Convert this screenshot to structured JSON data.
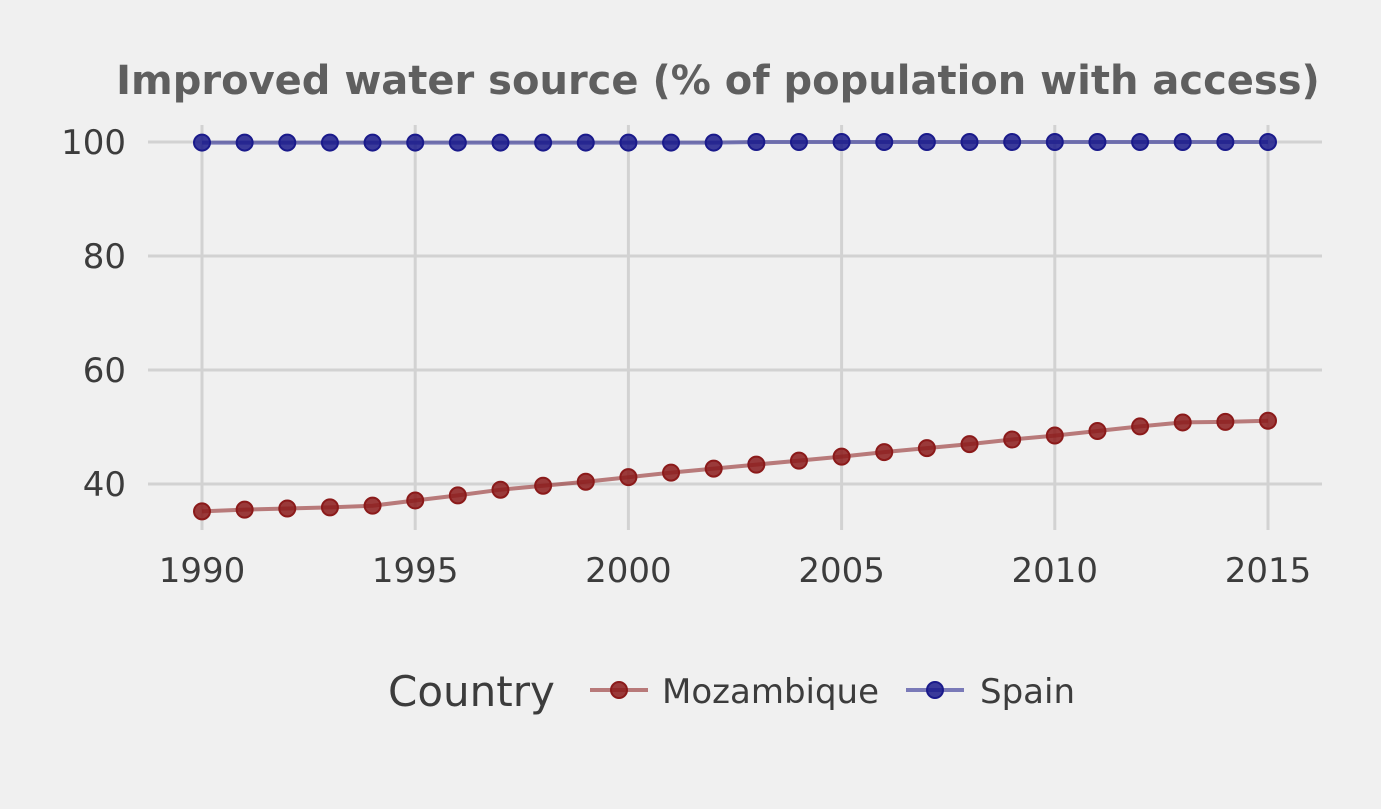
{
  "chart_data": {
    "type": "line",
    "title": "Improved water source (% of population with access)",
    "xlabel": "",
    "ylabel": "",
    "x": [
      1990,
      1991,
      1992,
      1993,
      1994,
      1995,
      1996,
      1997,
      1998,
      1999,
      2000,
      2001,
      2002,
      2003,
      2004,
      2005,
      2006,
      2007,
      2008,
      2009,
      2010,
      2011,
      2012,
      2013,
      2014,
      2015
    ],
    "xlim": [
      1990,
      2015
    ],
    "ylim": [
      35,
      100
    ],
    "x_ticks": [
      "1990",
      "1995",
      "2000",
      "2005",
      "2010",
      "2015"
    ],
    "y_ticks": [
      "40",
      "60",
      "80",
      "100"
    ],
    "grid": true,
    "legend": {
      "title": "Country",
      "position": "bottom"
    },
    "series": [
      {
        "name": "Mozambique",
        "color": "#8b1a1a",
        "values": [
          35.2,
          35.5,
          35.7,
          35.9,
          36.2,
          37.1,
          38.0,
          39.0,
          39.7,
          40.4,
          41.2,
          42.0,
          42.7,
          43.4,
          44.1,
          44.8,
          45.6,
          46.3,
          47.0,
          47.8,
          48.5,
          49.3,
          50.1,
          50.8,
          50.9,
          51.1
        ]
      },
      {
        "name": "Spain",
        "color": "#1a1a8b",
        "values": [
          99.9,
          99.9,
          99.9,
          99.9,
          99.9,
          99.9,
          99.9,
          99.9,
          99.9,
          99.9,
          99.9,
          99.9,
          99.9,
          100,
          100,
          100,
          100,
          100,
          100,
          100,
          100,
          100,
          100,
          100,
          100,
          100
        ]
      }
    ]
  }
}
